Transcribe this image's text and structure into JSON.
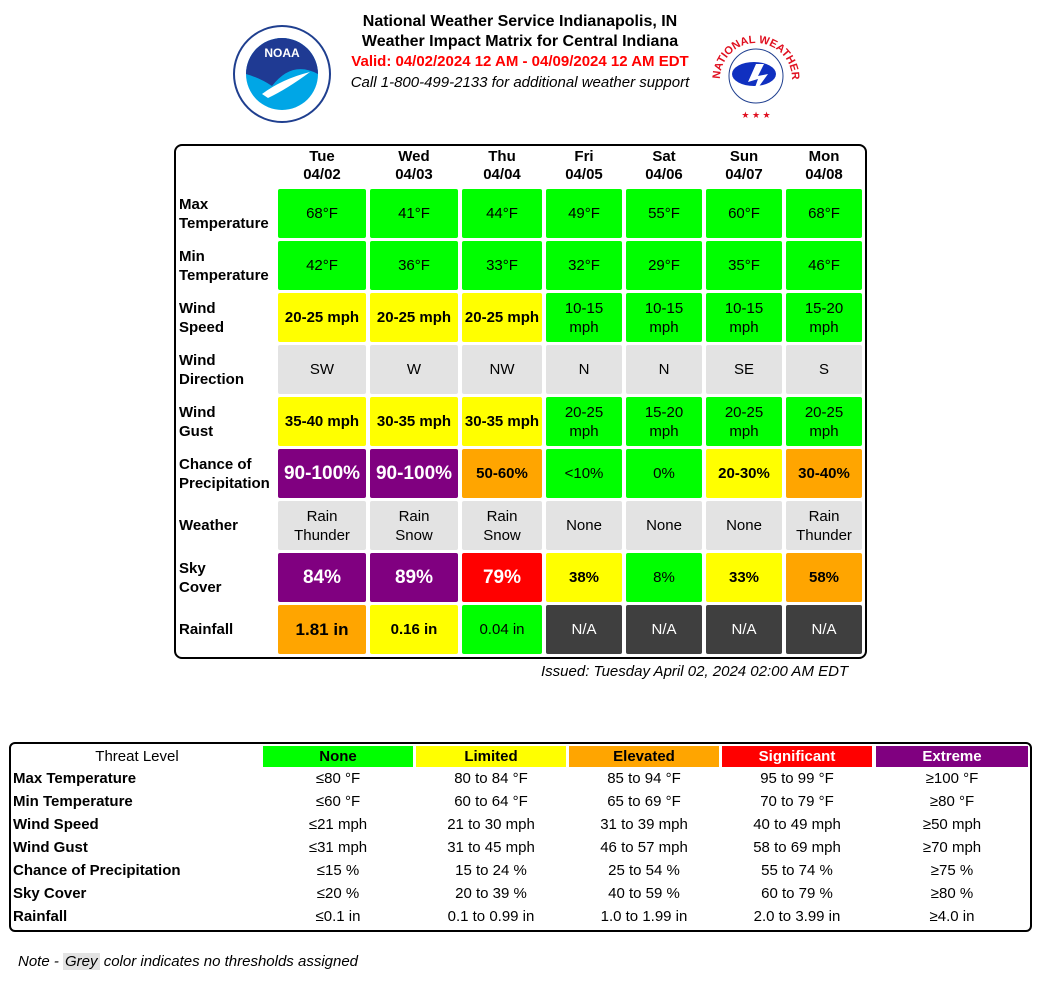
{
  "header": {
    "title1": "National Weather Service Indianapolis, IN",
    "title2": "Weather Impact Matrix for Central Indiana",
    "valid": "Valid: 04/02/2024 12 AM - 04/09/2024 12 AM EDT",
    "call": "Call 1-800-499-2133 for additional weather support"
  },
  "logos": {
    "left": "NOAA",
    "right": "NATIONAL WEATHER SERVICE"
  },
  "colors": {
    "none": "#00ff00",
    "limited": "#ffff00",
    "elevated": "#ffa500",
    "significant": "#ff0000",
    "extreme": "#800080",
    "grey": "#e3e3e3",
    "na": "#3f3f3f"
  },
  "days": [
    {
      "dow": "Tue",
      "date": "04/02"
    },
    {
      "dow": "Wed",
      "date": "04/03"
    },
    {
      "dow": "Thu",
      "date": "04/04"
    },
    {
      "dow": "Fri",
      "date": "04/05"
    },
    {
      "dow": "Sat",
      "date": "04/06"
    },
    {
      "dow": "Sun",
      "date": "04/07"
    },
    {
      "dow": "Mon",
      "date": "04/08"
    }
  ],
  "rows": [
    {
      "label": "Max\nTemperature",
      "cells": [
        {
          "v": "68°F",
          "l": "none"
        },
        {
          "v": "41°F",
          "l": "none"
        },
        {
          "v": "44°F",
          "l": "none"
        },
        {
          "v": "49°F",
          "l": "none"
        },
        {
          "v": "55°F",
          "l": "none"
        },
        {
          "v": "60°F",
          "l": "none"
        },
        {
          "v": "68°F",
          "l": "none"
        }
      ]
    },
    {
      "label": "Min\nTemperature",
      "cells": [
        {
          "v": "42°F",
          "l": "none"
        },
        {
          "v": "36°F",
          "l": "none"
        },
        {
          "v": "33°F",
          "l": "none"
        },
        {
          "v": "32°F",
          "l": "none"
        },
        {
          "v": "29°F",
          "l": "none"
        },
        {
          "v": "35°F",
          "l": "none"
        },
        {
          "v": "46°F",
          "l": "none"
        }
      ]
    },
    {
      "label": "Wind\nSpeed",
      "cells": [
        {
          "v": "20-25 mph",
          "l": "limited"
        },
        {
          "v": "20-25 mph",
          "l": "limited"
        },
        {
          "v": "20-25 mph",
          "l": "limited"
        },
        {
          "v": "10-15\nmph",
          "l": "none"
        },
        {
          "v": "10-15\nmph",
          "l": "none"
        },
        {
          "v": "10-15\nmph",
          "l": "none"
        },
        {
          "v": "15-20\nmph",
          "l": "none"
        }
      ]
    },
    {
      "label": "Wind\nDirection",
      "cells": [
        {
          "v": "SW",
          "l": "grey"
        },
        {
          "v": "W",
          "l": "grey"
        },
        {
          "v": "NW",
          "l": "grey"
        },
        {
          "v": "N",
          "l": "grey"
        },
        {
          "v": "N",
          "l": "grey"
        },
        {
          "v": "SE",
          "l": "grey"
        },
        {
          "v": "S",
          "l": "grey"
        }
      ]
    },
    {
      "label": "Wind\nGust",
      "cells": [
        {
          "v": "35-40 mph",
          "l": "limited"
        },
        {
          "v": "30-35 mph",
          "l": "limited"
        },
        {
          "v": "30-35 mph",
          "l": "limited"
        },
        {
          "v": "20-25\nmph",
          "l": "none"
        },
        {
          "v": "15-20\nmph",
          "l": "none"
        },
        {
          "v": "20-25\nmph",
          "l": "none"
        },
        {
          "v": "20-25\nmph",
          "l": "none"
        }
      ]
    },
    {
      "label": "Chance of\nPrecipitation",
      "cells": [
        {
          "v": "90-100%",
          "l": "extreme"
        },
        {
          "v": "90-100%",
          "l": "extreme"
        },
        {
          "v": "50-60%",
          "l": "elevated"
        },
        {
          "v": "<10%",
          "l": "none"
        },
        {
          "v": "0%",
          "l": "none"
        },
        {
          "v": "20-30%",
          "l": "limited"
        },
        {
          "v": "30-40%",
          "l": "elevated"
        }
      ]
    },
    {
      "label": "Weather",
      "cells": [
        {
          "v": "Rain\nThunder",
          "l": "grey"
        },
        {
          "v": "Rain\nSnow",
          "l": "grey"
        },
        {
          "v": "Rain\nSnow",
          "l": "grey"
        },
        {
          "v": "None",
          "l": "grey"
        },
        {
          "v": "None",
          "l": "grey"
        },
        {
          "v": "None",
          "l": "grey"
        },
        {
          "v": "Rain\nThunder",
          "l": "grey"
        }
      ]
    },
    {
      "label": "Sky\nCover",
      "cells": [
        {
          "v": "84%",
          "l": "extreme"
        },
        {
          "v": "89%",
          "l": "extreme"
        },
        {
          "v": "79%",
          "l": "significant"
        },
        {
          "v": "38%",
          "l": "limited"
        },
        {
          "v": "8%",
          "l": "none"
        },
        {
          "v": "33%",
          "l": "limited"
        },
        {
          "v": "58%",
          "l": "elevated"
        }
      ]
    },
    {
      "label": "Rainfall",
      "cells": [
        {
          "v": "1.81 in",
          "l": "elevated"
        },
        {
          "v": "0.16 in",
          "l": "limited"
        },
        {
          "v": "0.04 in",
          "l": "none"
        },
        {
          "v": "N/A",
          "l": "na"
        },
        {
          "v": "N/A",
          "l": "na"
        },
        {
          "v": "N/A",
          "l": "na"
        },
        {
          "v": "N/A",
          "l": "na"
        }
      ]
    }
  ],
  "issued": "Issued: Tuesday April 02, 2024 02:00 AM EDT",
  "legend": {
    "title": "Threat Level",
    "levels": [
      {
        "name": "None",
        "key": "none"
      },
      {
        "name": "Limited",
        "key": "limited"
      },
      {
        "name": "Elevated",
        "key": "elevated"
      },
      {
        "name": "Significant",
        "key": "significant"
      },
      {
        "name": "Extreme",
        "key": "extreme"
      }
    ],
    "rows": [
      {
        "label": "Max Temperature",
        "vals": [
          "≤80 °F",
          "80 to 84 °F",
          "85 to 94 °F",
          "95 to 99 °F",
          "≥100 °F"
        ]
      },
      {
        "label": "Min Temperature",
        "vals": [
          "≤60 °F",
          "60 to 64 °F",
          "65 to 69 °F",
          "70 to 79 °F",
          "≥80 °F"
        ]
      },
      {
        "label": "Wind Speed",
        "vals": [
          "≤21 mph",
          "21 to 30 mph",
          "31 to 39 mph",
          "40 to 49 mph",
          "≥50 mph"
        ]
      },
      {
        "label": "Wind Gust",
        "vals": [
          "≤31 mph",
          "31 to 45 mph",
          "46 to 57 mph",
          "58 to 69 mph",
          "≥70 mph"
        ]
      },
      {
        "label": "Chance of Precipitation",
        "vals": [
          "≤15 %",
          "15 to 24 %",
          "25 to 54 %",
          "55 to 74 %",
          "≥75 %"
        ]
      },
      {
        "label": "Sky Cover",
        "vals": [
          "≤20 %",
          "20 to 39 %",
          "40 to 59 %",
          "60 to 79 %",
          "≥80 %"
        ]
      },
      {
        "label": "Rainfall",
        "vals": [
          "≤0.1 in",
          "0.1 to 0.99 in",
          "1.0 to 1.99 in",
          "2.0 to 3.99 in",
          "≥4.0 in"
        ]
      }
    ]
  },
  "note": {
    "prefix": "Note - ",
    "grey": "Grey",
    "suffix": " color indicates no thresholds assigned"
  }
}
